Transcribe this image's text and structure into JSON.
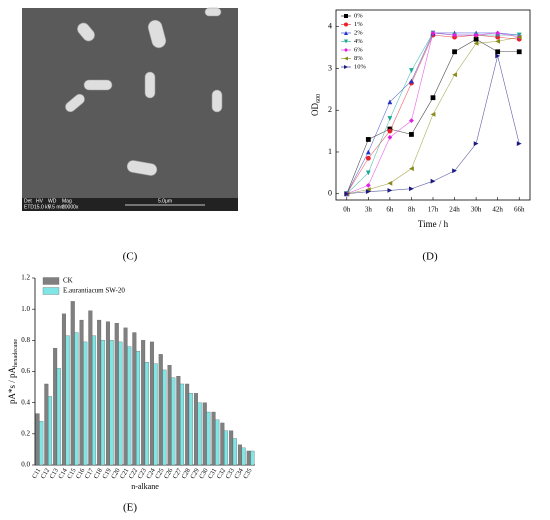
{
  "image": {
    "caption": "(C)",
    "labels": [
      "Det",
      "HV",
      "WD",
      "Mag",
      "ETD",
      "15.0 kV",
      "9.5 mm",
      "20000x"
    ],
    "scale_bar": "5.0μm"
  },
  "chart_data": [
    {
      "type": "line",
      "caption": "(D)",
      "xlabel": "Time / h",
      "ylabel": "OD",
      "ylabel_sub": "600",
      "categories": [
        "0h",
        "3h",
        "6h",
        "8h",
        "17h",
        "24h",
        "30h",
        "42h",
        "66h"
      ],
      "ylim": [
        -0.15,
        4.4
      ],
      "yticks": [
        0,
        1,
        2,
        3,
        4
      ],
      "legend": "upper-left",
      "series": [
        {
          "name": "0%",
          "color": "#000000",
          "marker": "square",
          "values": [
            0,
            1.3,
            1.55,
            1.42,
            2.3,
            3.4,
            3.7,
            3.4,
            3.4
          ]
        },
        {
          "name": "1%",
          "color": "#e8202a",
          "marker": "circle",
          "values": [
            0,
            0.85,
            1.5,
            2.65,
            3.8,
            3.75,
            3.8,
            3.75,
            3.7
          ]
        },
        {
          "name": "2%",
          "color": "#2233cc",
          "marker": "triangle-up",
          "values": [
            0,
            1.0,
            2.2,
            2.7,
            3.85,
            3.85,
            3.85,
            3.85,
            3.8
          ]
        },
        {
          "name": "4%",
          "color": "#1aa89a",
          "marker": "triangle-down",
          "values": [
            0,
            0.5,
            1.8,
            2.95,
            3.85,
            3.8,
            3.8,
            3.8,
            3.8
          ]
        },
        {
          "name": "6%",
          "color": "#e020e0",
          "marker": "diamond",
          "values": [
            0,
            0.2,
            1.35,
            1.75,
            3.85,
            3.8,
            3.8,
            3.85,
            3.75
          ]
        },
        {
          "name": "8%",
          "color": "#8a8a1a",
          "marker": "triangle-left",
          "values": [
            0,
            0.1,
            0.25,
            0.6,
            1.9,
            2.85,
            3.6,
            3.65,
            3.75
          ]
        },
        {
          "name": "10%",
          "color": "#1a1a80",
          "marker": "triangle-right",
          "values": [
            0,
            0.05,
            0.08,
            0.12,
            0.3,
            0.55,
            1.2,
            3.3,
            1.2
          ]
        }
      ]
    },
    {
      "type": "bar",
      "caption": "(E)",
      "xlabel": "n-alkane",
      "ylabel": "pA*s / pA",
      "ylabel_sub": "hexadecane",
      "categories": [
        "C11",
        "C12",
        "C13",
        "C14",
        "C15",
        "C16",
        "C17",
        "C18",
        "C19",
        "C20",
        "C21",
        "C22",
        "C23",
        "C24",
        "C25",
        "C26",
        "C27",
        "C28",
        "C29",
        "C30",
        "C31",
        "C32",
        "C33",
        "C34",
        "C35"
      ],
      "ylim": [
        0,
        1.2
      ],
      "yticks": [
        {
          "value": 0,
          "label": "0.0"
        },
        {
          "value": 0.2,
          "label": "0.2"
        },
        {
          "value": 0.4,
          "label": "0.4"
        },
        {
          "value": 0.6,
          "label": "0.6"
        },
        {
          "value": 0.8,
          "label": "0.8"
        },
        {
          "value": 1.0,
          "label": "1.0"
        },
        {
          "value": 1.2,
          "label": "1.2"
        }
      ],
      "legend": "upper-left",
      "series": [
        {
          "name": "CK",
          "color": "#808080",
          "values": [
            0.33,
            0.52,
            0.75,
            0.97,
            1.05,
            0.93,
            0.99,
            0.93,
            0.92,
            0.91,
            0.88,
            0.85,
            0.8,
            0.79,
            0.71,
            0.64,
            0.57,
            0.52,
            0.46,
            0.4,
            0.34,
            0.27,
            0.22,
            0.13,
            0.09
          ]
        },
        {
          "name": "E.aurantiacum SW-20",
          "color": "#7fe5e5",
          "values": [
            0.28,
            0.44,
            0.62,
            0.83,
            0.85,
            0.79,
            0.83,
            0.8,
            0.8,
            0.79,
            0.76,
            0.73,
            0.66,
            0.65,
            0.61,
            0.56,
            0.52,
            0.46,
            0.4,
            0.34,
            0.29,
            0.22,
            0.17,
            0.11,
            0.09
          ]
        }
      ]
    }
  ]
}
